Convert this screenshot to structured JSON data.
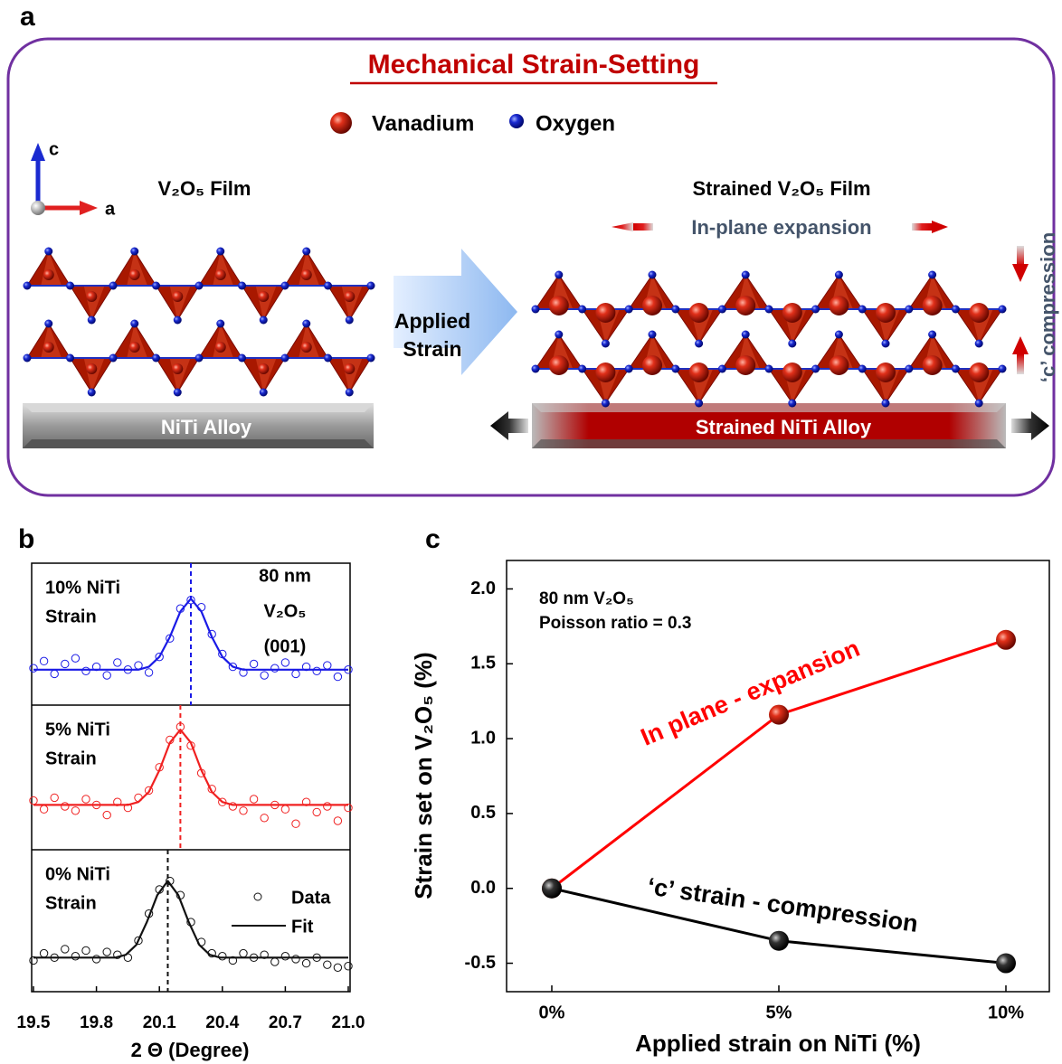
{
  "panel_a": {
    "panel_label": "a",
    "title": "Mechanical Strain-Setting",
    "legend": [
      "Vanadium",
      "Oxygen"
    ],
    "axes": [
      "c",
      "a"
    ],
    "left_film": "V₂O₅ Film",
    "right_film": "Strained V₂O₅ Film",
    "in_plane": "In-plane expansion",
    "c_compression": "‘c’ compression",
    "arrow": [
      "Applied",
      "Strain"
    ],
    "left_substrate": "NiTi Alloy",
    "right_substrate": "Strained NiTi Alloy"
  },
  "chart_data": [
    {
      "type": "xrd-stack",
      "panel_label": "b",
      "xlabel": "2 Θ (Degree)",
      "xlim": [
        19.5,
        21.0
      ],
      "xticks": [
        19.5,
        19.8,
        20.1,
        20.4,
        20.7,
        {
          "value": 21,
          "label": "21.0"
        }
      ],
      "sample": [
        "80 nm",
        "V₂O₅",
        "(001)"
      ],
      "legend": [
        "Data",
        "Fit"
      ],
      "x": [
        19.5,
        19.55,
        19.6,
        19.65,
        19.7,
        19.75,
        19.8,
        19.85,
        19.9,
        19.95,
        20.0,
        20.05,
        20.1,
        20.15,
        20.2,
        20.25,
        20.3,
        20.35,
        20.4,
        20.45,
        20.5,
        20.55,
        20.6,
        20.65,
        20.7,
        20.75,
        20.8,
        20.85,
        20.9,
        20.95,
        21.0
      ],
      "panels": [
        {
          "label": [
            "10% NiTi",
            "Strain"
          ],
          "color": "#1a1ae6",
          "ylim": [
            0,
            1
          ],
          "peak": 20.25,
          "values": [
            0.26,
            0.31,
            0.22,
            0.29,
            0.33,
            0.24,
            0.27,
            0.21,
            0.3,
            0.25,
            0.28,
            0.23,
            0.34,
            0.47,
            0.68,
            0.74,
            0.69,
            0.5,
            0.36,
            0.27,
            0.23,
            0.29,
            0.21,
            0.26,
            0.3,
            0.22,
            0.27,
            0.24,
            0.28,
            0.2,
            0.25
          ],
          "fit_x": [
            19.5,
            20.0,
            20.05,
            20.1,
            20.15,
            20.2,
            20.25,
            20.3,
            20.35,
            20.4,
            20.45,
            20.5,
            21.0
          ],
          "fit": [
            0.25,
            0.25,
            0.27,
            0.34,
            0.48,
            0.66,
            0.75,
            0.66,
            0.48,
            0.34,
            0.27,
            0.25,
            0.25
          ]
        },
        {
          "label": [
            "5% NiTi",
            "Strain"
          ],
          "color": "#f02020",
          "ylim": [
            0,
            1
          ],
          "peak": 20.2,
          "values": [
            0.34,
            0.28,
            0.36,
            0.3,
            0.27,
            0.35,
            0.31,
            0.24,
            0.33,
            0.29,
            0.36,
            0.41,
            0.57,
            0.76,
            0.85,
            0.72,
            0.53,
            0.42,
            0.33,
            0.3,
            0.27,
            0.35,
            0.22,
            0.31,
            0.28,
            0.18,
            0.33,
            0.26,
            0.3,
            0.2,
            0.29
          ],
          "fit_x": [
            19.5,
            19.95,
            20.0,
            20.05,
            20.1,
            20.15,
            20.2,
            20.25,
            20.3,
            20.35,
            20.4,
            20.45,
            21.0
          ],
          "fit": [
            0.31,
            0.31,
            0.33,
            0.4,
            0.55,
            0.74,
            0.83,
            0.74,
            0.55,
            0.4,
            0.33,
            0.31,
            0.31
          ]
        },
        {
          "label": [
            "0% NiTi",
            "Strain"
          ],
          "color": "#111111",
          "ylim": [
            0,
            1
          ],
          "peak": 20.14,
          "values": [
            0.22,
            0.27,
            0.24,
            0.3,
            0.25,
            0.29,
            0.23,
            0.28,
            0.26,
            0.24,
            0.36,
            0.55,
            0.72,
            0.78,
            0.68,
            0.49,
            0.35,
            0.27,
            0.25,
            0.22,
            0.27,
            0.24,
            0.26,
            0.21,
            0.25,
            0.23,
            0.2,
            0.24,
            0.19,
            0.17,
            0.18
          ],
          "fit_x": [
            19.5,
            19.89,
            19.94,
            19.99,
            20.04,
            20.09,
            20.14,
            20.19,
            20.24,
            20.29,
            20.34,
            20.39,
            21.0
          ],
          "fit": [
            0.24,
            0.24,
            0.26,
            0.33,
            0.49,
            0.68,
            0.78,
            0.68,
            0.49,
            0.33,
            0.26,
            0.24,
            0.24
          ]
        }
      ]
    },
    {
      "type": "line",
      "panel_label": "c",
      "xlabel": "Applied strain on NiTi (%)",
      "ylabel": "Strain set on V₂O₅ (%)",
      "annotation": [
        "80 nm V₂O₅",
        "Poisson ratio = 0.3"
      ],
      "categories": [
        "0%",
        "5%",
        "10%"
      ],
      "ylim": [
        -0.69,
        2.19
      ],
      "yticks": [
        -0.5,
        {
          "value": 0,
          "label": "0.0"
        },
        0.5,
        {
          "value": 1,
          "label": "1.0"
        },
        1.5,
        {
          "value": 2,
          "label": "2.0"
        }
      ],
      "series": [
        {
          "name": "In plane - expansion",
          "color": "#ff0000",
          "values": [
            0,
            1.16,
            1.66
          ]
        },
        {
          "name": "‘c’ strain - compression",
          "color": "#000000",
          "values": [
            0,
            -0.35,
            -0.5
          ]
        }
      ]
    }
  ]
}
